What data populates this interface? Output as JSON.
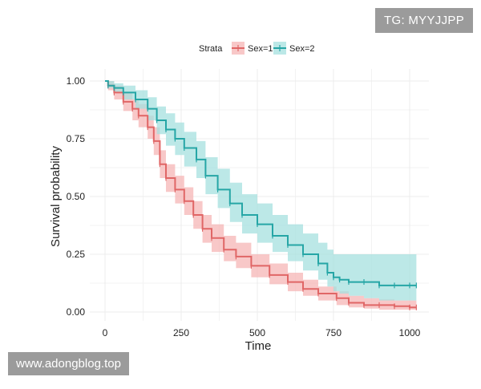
{
  "watermarks": {
    "top_right": "TG: MYYJJPP",
    "bottom_left": "www.adongblog.top"
  },
  "colors": {
    "sex1": "#e06666",
    "sex1_band": "#f5b5b5",
    "sex2": "#26a6a6",
    "sex2_band": "#a5e0df",
    "grid": "#ececec",
    "text": "#222222"
  },
  "chart_data": {
    "type": "line",
    "subtype": "kaplan-meier step survival with confidence bands",
    "title": "",
    "xlabel": "Time",
    "ylabel": "Survival probability",
    "xlim": [
      0,
      1022
    ],
    "ylim": [
      0,
      1
    ],
    "x_ticks": [
      0,
      250,
      500,
      750,
      1000
    ],
    "x_tick_labels": [
      "0",
      "250",
      "500",
      "750",
      "1000"
    ],
    "y_ticks": [
      0,
      0.25,
      0.5,
      0.75,
      1
    ],
    "y_tick_labels": [
      "0.00",
      "0.25",
      "0.50",
      "0.75",
      "1.00"
    ],
    "grid": true,
    "legend": {
      "title": "Strata",
      "position": "top",
      "entries": [
        "Sex=1",
        "Sex=2"
      ]
    },
    "series": [
      {
        "name": "Sex=1",
        "x": [
          0,
          10,
          30,
          60,
          90,
          110,
          140,
          160,
          180,
          200,
          230,
          260,
          290,
          320,
          350,
          390,
          430,
          480,
          540,
          600,
          650,
          700,
          760,
          800,
          850,
          900,
          950,
          1000,
          1022
        ],
        "y": [
          1.0,
          0.98,
          0.95,
          0.91,
          0.88,
          0.85,
          0.8,
          0.74,
          0.64,
          0.58,
          0.53,
          0.48,
          0.42,
          0.36,
          0.32,
          0.27,
          0.24,
          0.2,
          0.16,
          0.13,
          0.1,
          0.08,
          0.06,
          0.04,
          0.03,
          0.03,
          0.025,
          0.02,
          0.02
        ],
        "ci_lower": [
          1.0,
          0.96,
          0.92,
          0.87,
          0.83,
          0.8,
          0.75,
          0.68,
          0.58,
          0.52,
          0.47,
          0.42,
          0.36,
          0.3,
          0.26,
          0.22,
          0.19,
          0.15,
          0.12,
          0.09,
          0.07,
          0.05,
          0.03,
          0.02,
          0.015,
          0.01,
          0.01,
          0.01,
          0.01
        ],
        "ci_upper": [
          1.0,
          1.0,
          0.98,
          0.95,
          0.92,
          0.9,
          0.85,
          0.8,
          0.7,
          0.64,
          0.59,
          0.54,
          0.48,
          0.42,
          0.38,
          0.33,
          0.3,
          0.25,
          0.21,
          0.17,
          0.14,
          0.11,
          0.09,
          0.07,
          0.06,
          0.055,
          0.05,
          0.05,
          0.05
        ]
      },
      {
        "name": "Sex=2",
        "x": [
          0,
          10,
          30,
          60,
          100,
          140,
          170,
          200,
          230,
          260,
          300,
          330,
          370,
          410,
          450,
          500,
          550,
          600,
          650,
          700,
          730,
          750,
          770,
          800,
          850,
          900,
          950,
          1000,
          1022
        ],
        "y": [
          1.0,
          0.98,
          0.97,
          0.95,
          0.92,
          0.88,
          0.83,
          0.79,
          0.75,
          0.71,
          0.66,
          0.59,
          0.53,
          0.47,
          0.42,
          0.38,
          0.33,
          0.29,
          0.25,
          0.21,
          0.17,
          0.15,
          0.14,
          0.13,
          0.13,
          0.115,
          0.115,
          0.115,
          0.115
        ],
        "ci_lower": [
          1.0,
          0.97,
          0.95,
          0.92,
          0.88,
          0.83,
          0.77,
          0.72,
          0.68,
          0.63,
          0.58,
          0.51,
          0.45,
          0.39,
          0.34,
          0.3,
          0.26,
          0.22,
          0.18,
          0.14,
          0.11,
          0.09,
          0.08,
          0.07,
          0.06,
          0.05,
          0.05,
          0.05,
          0.05
        ],
        "ci_upper": [
          1.0,
          1.0,
          0.99,
          0.98,
          0.96,
          0.93,
          0.89,
          0.86,
          0.82,
          0.78,
          0.74,
          0.67,
          0.62,
          0.56,
          0.51,
          0.47,
          0.42,
          0.38,
          0.34,
          0.3,
          0.27,
          0.25,
          0.25,
          0.25,
          0.25,
          0.25,
          0.25,
          0.25,
          0.25
        ]
      }
    ]
  }
}
